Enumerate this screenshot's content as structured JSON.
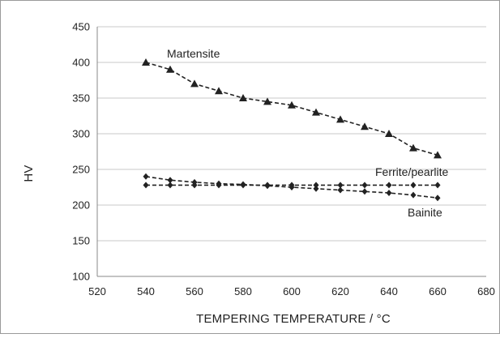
{
  "chart_data": {
    "type": "line",
    "title": "",
    "xlabel": "TEMPERING TEMPERATURE / °C",
    "ylabel": "HV",
    "xlim": [
      520,
      680
    ],
    "ylim": [
      100,
      450
    ],
    "xticks": [
      520,
      540,
      560,
      580,
      600,
      620,
      640,
      660,
      680
    ],
    "yticks": [
      100,
      150,
      200,
      250,
      300,
      350,
      400,
      450
    ],
    "grid": "horizontal",
    "legend": "none (series labelled directly on the plot)",
    "line_style": "dashed",
    "line_color": "#222222",
    "series": [
      {
        "name": "Martensite",
        "marker": "triangle",
        "x": [
          540,
          550,
          560,
          570,
          580,
          590,
          600,
          610,
          620,
          630,
          640,
          650,
          660
        ],
        "y": [
          400,
          390,
          370,
          360,
          350,
          345,
          340,
          330,
          320,
          310,
          300,
          280,
          270
        ]
      },
      {
        "name": "Ferrite/pearlite",
        "marker": "diamond",
        "x": [
          540,
          550,
          560,
          570,
          580,
          590,
          600,
          610,
          620,
          630,
          640,
          650,
          660
        ],
        "y": [
          228,
          228,
          228,
          228,
          228,
          228,
          228,
          228,
          228,
          228,
          228,
          228,
          228
        ]
      },
      {
        "name": "Bainite",
        "marker": "diamond",
        "x": [
          540,
          550,
          560,
          570,
          580,
          590,
          600,
          610,
          620,
          630,
          640,
          650,
          660
        ],
        "y": [
          240,
          235,
          232,
          230,
          229,
          227,
          225,
          223,
          221,
          219,
          217,
          214,
          210
        ]
      }
    ]
  }
}
